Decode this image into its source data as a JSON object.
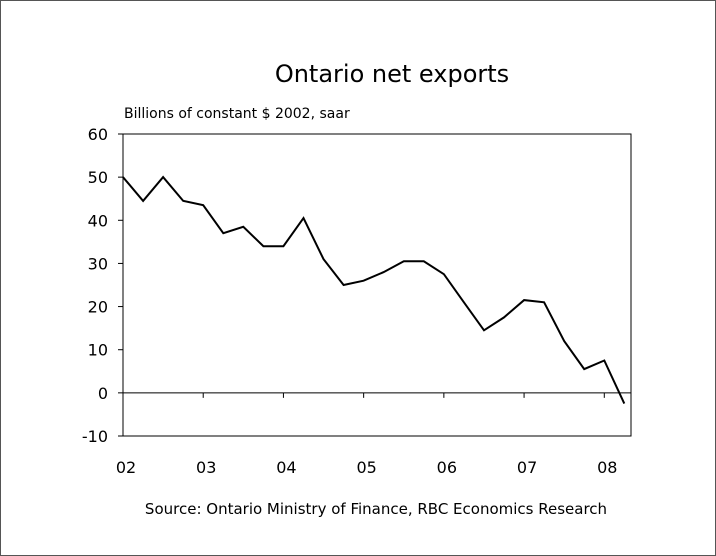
{
  "chart_data": {
    "type": "line",
    "title": "Ontario net exports",
    "ylabel": "Billions of constant $ 2002, saar",
    "source": "Source: Ontario Ministry of Finance, RBC Economics Research",
    "ylim": [
      -10,
      60
    ],
    "yticks": [
      -10,
      0,
      10,
      20,
      30,
      40,
      50,
      60
    ],
    "ytick_labels": [
      "-10",
      "0",
      "10",
      "20",
      "30",
      "40",
      "50",
      "60"
    ],
    "xlim": [
      2002.0,
      2008.333
    ],
    "xticks": [
      2002,
      2003,
      2004,
      2005,
      2006,
      2007,
      2008
    ],
    "xtick_labels": [
      "02",
      "03",
      "04",
      "05",
      "06",
      "07",
      "08"
    ],
    "grid": false,
    "series": [
      {
        "x": [
          2002.0,
          2002.25,
          2002.5,
          2002.75,
          2003.0,
          2003.25,
          2003.5,
          2003.75,
          2004.0,
          2004.25,
          2004.5,
          2004.75,
          2005.0,
          2005.25,
          2005.5,
          2005.75,
          2006.0,
          2006.25,
          2006.5,
          2006.75,
          2007.0,
          2007.25,
          2007.5,
          2007.75,
          2008.0,
          2008.25
        ],
        "y": [
          50,
          44.5,
          50,
          44.5,
          43.5,
          37,
          38.5,
          34,
          34,
          40.5,
          31,
          25,
          26,
          28,
          30.5,
          30.5,
          27.5,
          21,
          14.5,
          17.5,
          21.5,
          21,
          12,
          5.5,
          7.5,
          -2.5
        ]
      }
    ],
    "colors": {
      "line": "#000000",
      "axis": "#000000",
      "frame": "#555555"
    }
  }
}
